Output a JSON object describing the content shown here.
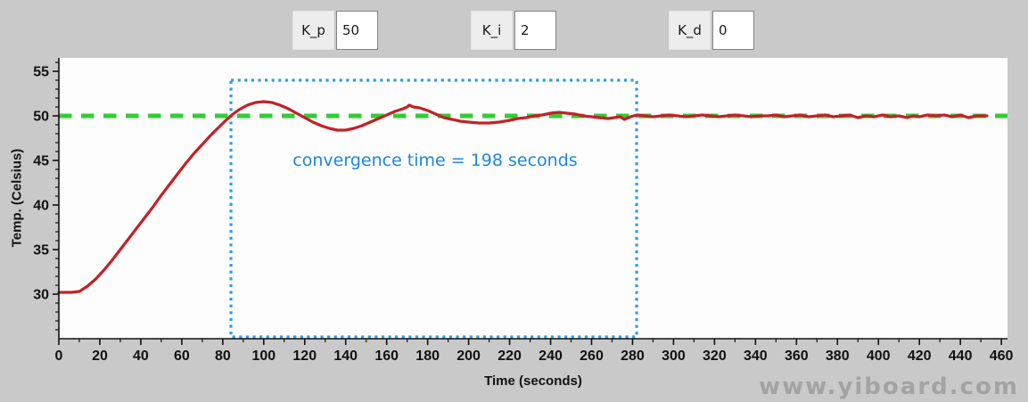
{
  "controls": [
    {
      "label": "K_p",
      "value": "50"
    },
    {
      "label": "K_i",
      "value": "2"
    },
    {
      "label": "K_d",
      "value": "0"
    }
  ],
  "watermark": "www.yiboard.com",
  "colors": {
    "background": "#c9c9c9",
    "plot_background": "#fdfdfe",
    "curve_red": "#c32127",
    "setpoint_green": "#33cc33",
    "box_blue": "#2f9ee3",
    "annotation_blue": "#1c87e0",
    "axis_black": "#111111"
  },
  "chart_data": {
    "type": "line",
    "title": "",
    "xlabel": "Time (seconds)",
    "ylabel": "Temp. (Celsius)",
    "xlim": [
      0,
      463
    ],
    "ylim": [
      25,
      56.5
    ],
    "x_major_ticks": [
      0,
      20,
      40,
      60,
      80,
      100,
      120,
      140,
      160,
      180,
      200,
      220,
      240,
      260,
      280,
      300,
      320,
      340,
      360,
      380,
      400,
      420,
      440,
      460
    ],
    "x_minor_step": 10,
    "y_major_ticks": [
      30,
      35,
      40,
      45,
      50,
      55
    ],
    "y_minor_step": 1,
    "grid": false,
    "setpoint": {
      "name": "setpoint-50C",
      "value": 50,
      "color": "#33cc33",
      "style": "dashed"
    },
    "series": [
      {
        "name": "temperature",
        "color": "#c32127",
        "points": [
          [
            0,
            30.2
          ],
          [
            6,
            30.2
          ],
          [
            10,
            30.3
          ],
          [
            14,
            30.9
          ],
          [
            18,
            31.7
          ],
          [
            22,
            32.7
          ],
          [
            26,
            33.8
          ],
          [
            30,
            35.0
          ],
          [
            34,
            36.2
          ],
          [
            38,
            37.4
          ],
          [
            42,
            38.6
          ],
          [
            46,
            39.8
          ],
          [
            50,
            41.1
          ],
          [
            54,
            42.3
          ],
          [
            58,
            43.5
          ],
          [
            62,
            44.7
          ],
          [
            66,
            45.8
          ],
          [
            70,
            46.8
          ],
          [
            74,
            47.8
          ],
          [
            78,
            48.7
          ],
          [
            82,
            49.6
          ],
          [
            85,
            50.2
          ],
          [
            88,
            50.7
          ],
          [
            92,
            51.2
          ],
          [
            96,
            51.5
          ],
          [
            100,
            51.6
          ],
          [
            104,
            51.5
          ],
          [
            108,
            51.2
          ],
          [
            112,
            50.8
          ],
          [
            116,
            50.3
          ],
          [
            120,
            49.8
          ],
          [
            124,
            49.3
          ],
          [
            128,
            48.9
          ],
          [
            132,
            48.6
          ],
          [
            136,
            48.4
          ],
          [
            140,
            48.4
          ],
          [
            144,
            48.6
          ],
          [
            148,
            48.9
          ],
          [
            152,
            49.3
          ],
          [
            156,
            49.7
          ],
          [
            160,
            50.1
          ],
          [
            164,
            50.5
          ],
          [
            168,
            50.8
          ],
          [
            170,
            51.0
          ],
          [
            171,
            51.2
          ],
          [
            173,
            51.0
          ],
          [
            176,
            50.9
          ],
          [
            180,
            50.6
          ],
          [
            184,
            50.2
          ],
          [
            188,
            49.8
          ],
          [
            192,
            49.6
          ],
          [
            196,
            49.4
          ],
          [
            200,
            49.3
          ],
          [
            205,
            49.2
          ],
          [
            210,
            49.2
          ],
          [
            215,
            49.3
          ],
          [
            220,
            49.5
          ],
          [
            224,
            49.7
          ],
          [
            228,
            49.8
          ],
          [
            232,
            50.0
          ],
          [
            236,
            50.1
          ],
          [
            240,
            50.3
          ],
          [
            244,
            50.4
          ],
          [
            248,
            50.3
          ],
          [
            252,
            50.2
          ],
          [
            256,
            50.0
          ],
          [
            260,
            49.9
          ],
          [
            264,
            49.8
          ],
          [
            268,
            49.7
          ],
          [
            271,
            49.8
          ],
          [
            274,
            49.9
          ],
          [
            276,
            49.6
          ],
          [
            279,
            49.9
          ],
          [
            282,
            50.1
          ],
          [
            286,
            50.0
          ],
          [
            290,
            49.9
          ],
          [
            294,
            50.0
          ],
          [
            298,
            50.1
          ],
          [
            302,
            50.0
          ],
          [
            306,
            49.9
          ],
          [
            310,
            50.0
          ],
          [
            314,
            50.1
          ],
          [
            318,
            50.0
          ],
          [
            322,
            49.9
          ],
          [
            326,
            50.0
          ],
          [
            330,
            50.1
          ],
          [
            334,
            50.0
          ],
          [
            338,
            49.9
          ],
          [
            342,
            50.0
          ],
          [
            346,
            50.0
          ],
          [
            350,
            50.1
          ],
          [
            354,
            49.9
          ],
          [
            358,
            50.0
          ],
          [
            362,
            50.1
          ],
          [
            366,
            49.9
          ],
          [
            370,
            50.0
          ],
          [
            374,
            50.1
          ],
          [
            378,
            49.9
          ],
          [
            382,
            50.0
          ],
          [
            386,
            50.1
          ],
          [
            390,
            49.8
          ],
          [
            394,
            50.0
          ],
          [
            398,
            49.9
          ],
          [
            402,
            50.1
          ],
          [
            406,
            49.9
          ],
          [
            410,
            50.0
          ],
          [
            414,
            49.8
          ],
          [
            417,
            50.0
          ],
          [
            420,
            49.9
          ],
          [
            424,
            50.1
          ],
          [
            428,
            50.0
          ],
          [
            432,
            50.1
          ],
          [
            436,
            49.9
          ],
          [
            440,
            50.1
          ],
          [
            444,
            49.8
          ],
          [
            448,
            50.0
          ],
          [
            453,
            50.0
          ]
        ]
      }
    ],
    "annotation_box": {
      "t_start": 84,
      "t_end": 282,
      "temp_top": 54,
      "temp_bottom": 25.2,
      "color": "#2f9ee3",
      "style": "dotted"
    },
    "annotation": {
      "text": "convergence time = 198 seconds",
      "color": "#1c87e0"
    },
    "convergence_time_seconds": 198,
    "legend": "none"
  }
}
